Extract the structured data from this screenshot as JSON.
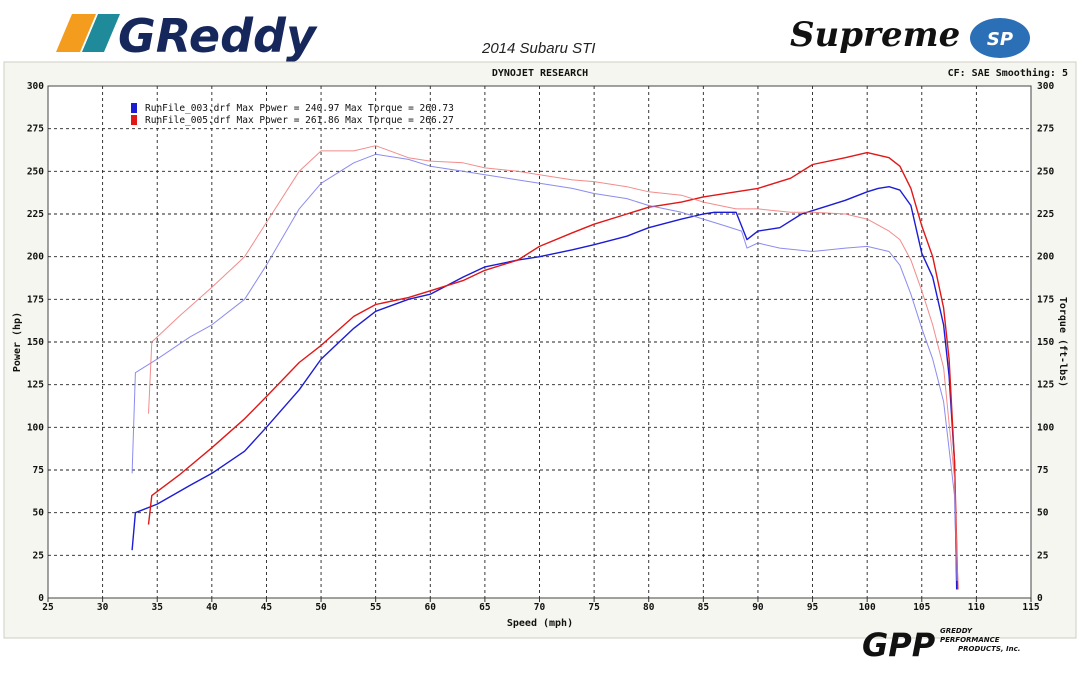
{
  "header": {
    "brand_left": "GReddy",
    "vehicle": "2014 Subaru STI",
    "brand_right": "Supreme",
    "brand_right_badge": "SP",
    "brand_colors": {
      "orange": "#f39c1d",
      "teal": "#1f8a9a",
      "navy": "#16275c",
      "sp_blue": "#2b6fb6"
    }
  },
  "chart_data": {
    "type": "line",
    "title": "DYNOJET RESEARCH",
    "top_right": "CF: SAE  Smoothing: 5",
    "xlabel": "Speed (mph)",
    "ylabel_left": "Power (hp)",
    "ylabel_right": "Torque (ft-lbs)",
    "xlim": [
      25,
      115
    ],
    "ylim": [
      0,
      300
    ],
    "x_ticks": [
      25,
      30,
      35,
      40,
      45,
      50,
      55,
      60,
      65,
      70,
      75,
      80,
      85,
      90,
      95,
      100,
      105,
      110,
      115
    ],
    "y_ticks": [
      0,
      25,
      50,
      75,
      100,
      125,
      150,
      175,
      200,
      225,
      250,
      275,
      300
    ],
    "grid": true,
    "legend_position": "top-left",
    "legend": [
      {
        "label": "RunFile_003.drf Max Power = 240.97 Max Torque = 260.73",
        "color": "#1c1cd4"
      },
      {
        "label": "RunFile_005.drf Max Power = 261.86 Max Torque = 266.27",
        "color": "#e01818"
      }
    ],
    "series": [
      {
        "run": "RunFile_003.drf",
        "measure": "Power",
        "color": "#1c1cd4",
        "x": [
          32.7,
          33,
          35,
          38,
          40,
          43,
          45,
          48,
          50,
          53,
          55,
          58,
          60,
          63,
          65,
          68,
          70,
          73,
          75,
          78,
          80,
          83,
          85,
          86,
          88,
          89,
          90,
          92,
          94,
          96,
          98,
          100,
          101,
          102,
          103,
          104,
          105,
          106,
          107,
          107.5,
          108,
          108.2
        ],
        "y": [
          28,
          50,
          55,
          66,
          73,
          86,
          100,
          122,
          140,
          158,
          168,
          175,
          178,
          188,
          194,
          198,
          200,
          204,
          207,
          212,
          217,
          222,
          225,
          226,
          226,
          210,
          215,
          217,
          225,
          229,
          233,
          238,
          240,
          241,
          239,
          230,
          202,
          188,
          160,
          130,
          80,
          5
        ]
      },
      {
        "run": "RunFile_005.drf",
        "measure": "Power",
        "color": "#e01818",
        "x": [
          34.2,
          34.5,
          37,
          40,
          43,
          45,
          48,
          50,
          53,
          55,
          58,
          60,
          63,
          65,
          68,
          70,
          73,
          75,
          78,
          80,
          83,
          85,
          88,
          90,
          93,
          95,
          98,
          100,
          102,
          103,
          104,
          105,
          106,
          107,
          107.5,
          108,
          108.3
        ],
        "y": [
          43,
          60,
          72,
          88,
          105,
          118,
          138,
          148,
          165,
          172,
          176,
          180,
          186,
          192,
          198,
          206,
          214,
          219,
          225,
          229,
          232,
          235,
          238,
          240,
          246,
          254,
          258,
          261,
          258,
          253,
          240,
          218,
          200,
          170,
          140,
          80,
          5
        ]
      },
      {
        "run": "RunFile_003.drf",
        "measure": "Torque",
        "color": "#7878ec",
        "x": [
          32.7,
          33,
          35,
          38,
          40,
          43,
          45,
          48,
          50,
          53,
          55,
          58,
          60,
          63,
          65,
          68,
          70,
          73,
          75,
          78,
          80,
          83,
          85,
          87,
          88.5,
          89,
          90,
          92,
          95,
          98,
          100,
          102,
          103,
          104,
          105,
          106,
          107,
          108,
          108.2
        ],
        "y": [
          73,
          132,
          140,
          153,
          160,
          175,
          195,
          228,
          243,
          255,
          260,
          257,
          253,
          250,
          248,
          245,
          243,
          240,
          237,
          234,
          230,
          226,
          222,
          218,
          215,
          205,
          208,
          205,
          203,
          205,
          206,
          203,
          195,
          178,
          158,
          140,
          115,
          60,
          10
        ]
      },
      {
        "run": "RunFile_005.drf",
        "measure": "Torque",
        "color": "#f07878",
        "x": [
          34.2,
          34.5,
          37,
          40,
          43,
          45,
          48,
          50,
          53,
          55,
          58,
          60,
          63,
          65,
          68,
          70,
          73,
          75,
          78,
          80,
          83,
          85,
          88,
          90,
          93,
          95,
          98,
          100,
          102,
          103,
          104,
          105,
          106,
          107,
          108,
          108.3
        ],
        "y": [
          108,
          150,
          165,
          182,
          200,
          220,
          250,
          262,
          262,
          265,
          258,
          256,
          255,
          252,
          250,
          248,
          245,
          244,
          241,
          238,
          236,
          232,
          228,
          228,
          226,
          226,
          225,
          222,
          215,
          210,
          198,
          180,
          160,
          135,
          70,
          10
        ]
      }
    ]
  },
  "footer": {
    "logo_mark": "GPP",
    "logo_lines": [
      "GREDDY",
      "PERFORMANCE",
      "PRODUCTS, Inc."
    ]
  }
}
